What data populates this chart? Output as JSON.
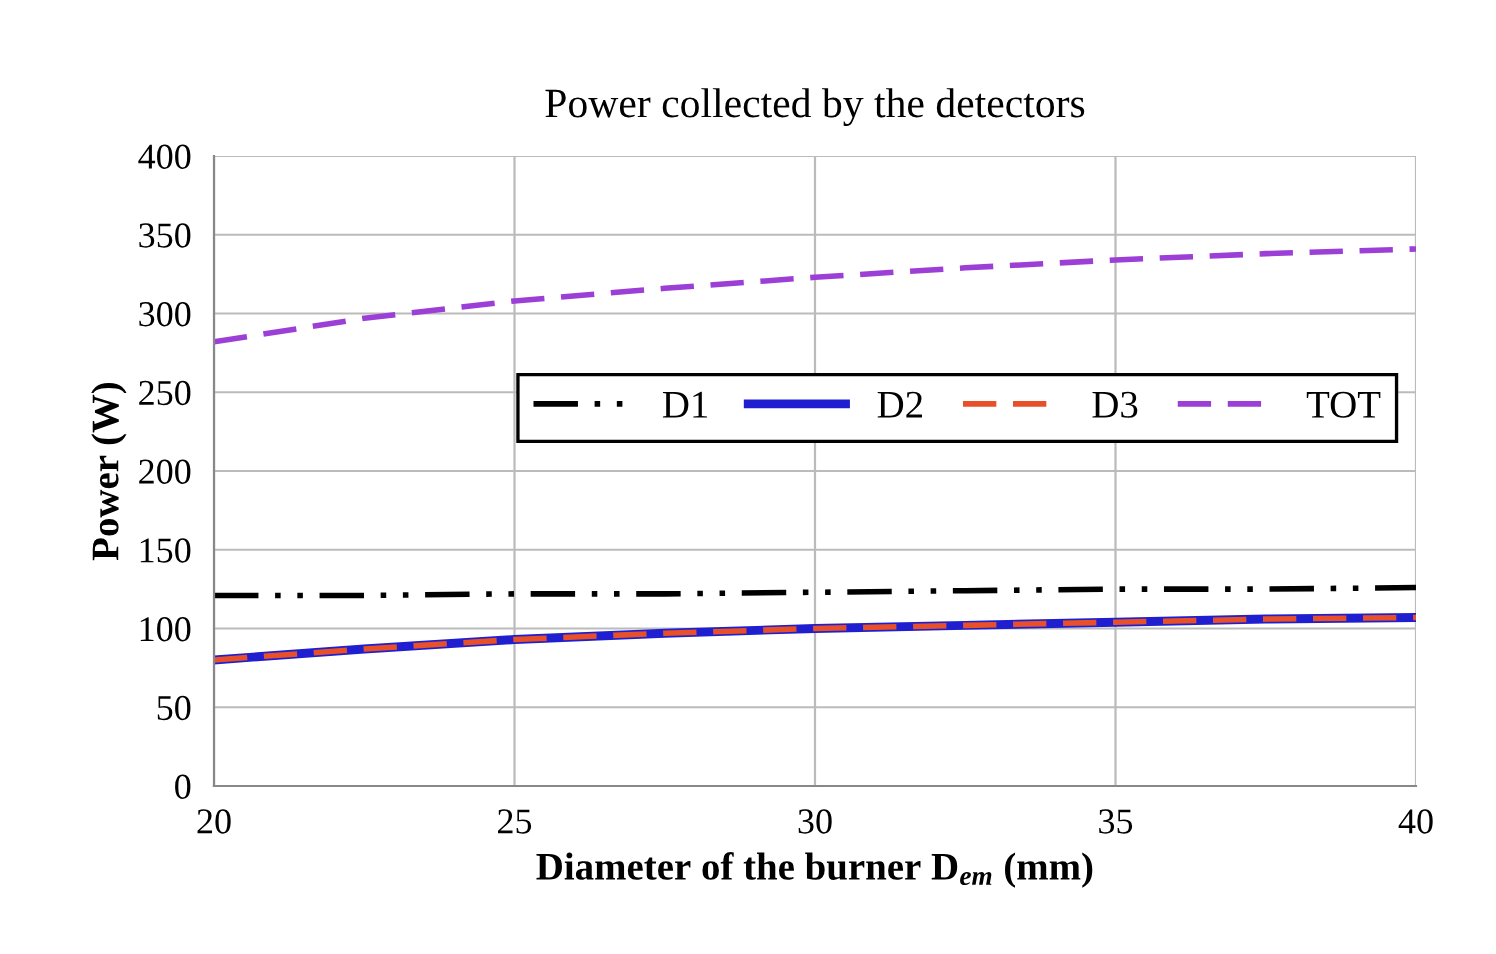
{
  "chart_data": {
    "type": "line",
    "title": "Power collected by the detectors",
    "xlabel": "Diameter of the burner D$_{em}$ (mm)",
    "ylabel": "Power (W)",
    "x": [
      20,
      22.5,
      25,
      27.5,
      30,
      32.5,
      35,
      37.5,
      40
    ],
    "series": [
      {
        "name": "D1",
        "color": "#000000",
        "line_style": "dashdotdot",
        "values": [
          121,
          121,
          122,
          122,
          123,
          124,
          125,
          125,
          126
        ]
      },
      {
        "name": "D2",
        "color": "#1f1fd0",
        "line_style": "solid",
        "values": [
          80,
          87,
          93,
          97,
          100,
          102,
          104,
          106,
          107
        ]
      },
      {
        "name": "D3",
        "color": "#e8502a",
        "line_style": "dashed",
        "values": [
          80,
          87,
          93,
          97,
          100,
          102,
          104,
          106,
          107
        ]
      },
      {
        "name": "TOT",
        "color": "#9b3fd6",
        "line_style": "dashed",
        "values": [
          282,
          297,
          308,
          316,
          323,
          329,
          334,
          338,
          341
        ]
      }
    ],
    "xlim": [
      20,
      40
    ],
    "xticks": [
      20,
      25,
      30,
      35,
      40
    ],
    "ylim": [
      0,
      400
    ],
    "yticks": [
      0,
      50,
      100,
      150,
      200,
      250,
      300,
      350,
      400
    ],
    "grid": true,
    "legend": "right",
    "marker": "none"
  }
}
